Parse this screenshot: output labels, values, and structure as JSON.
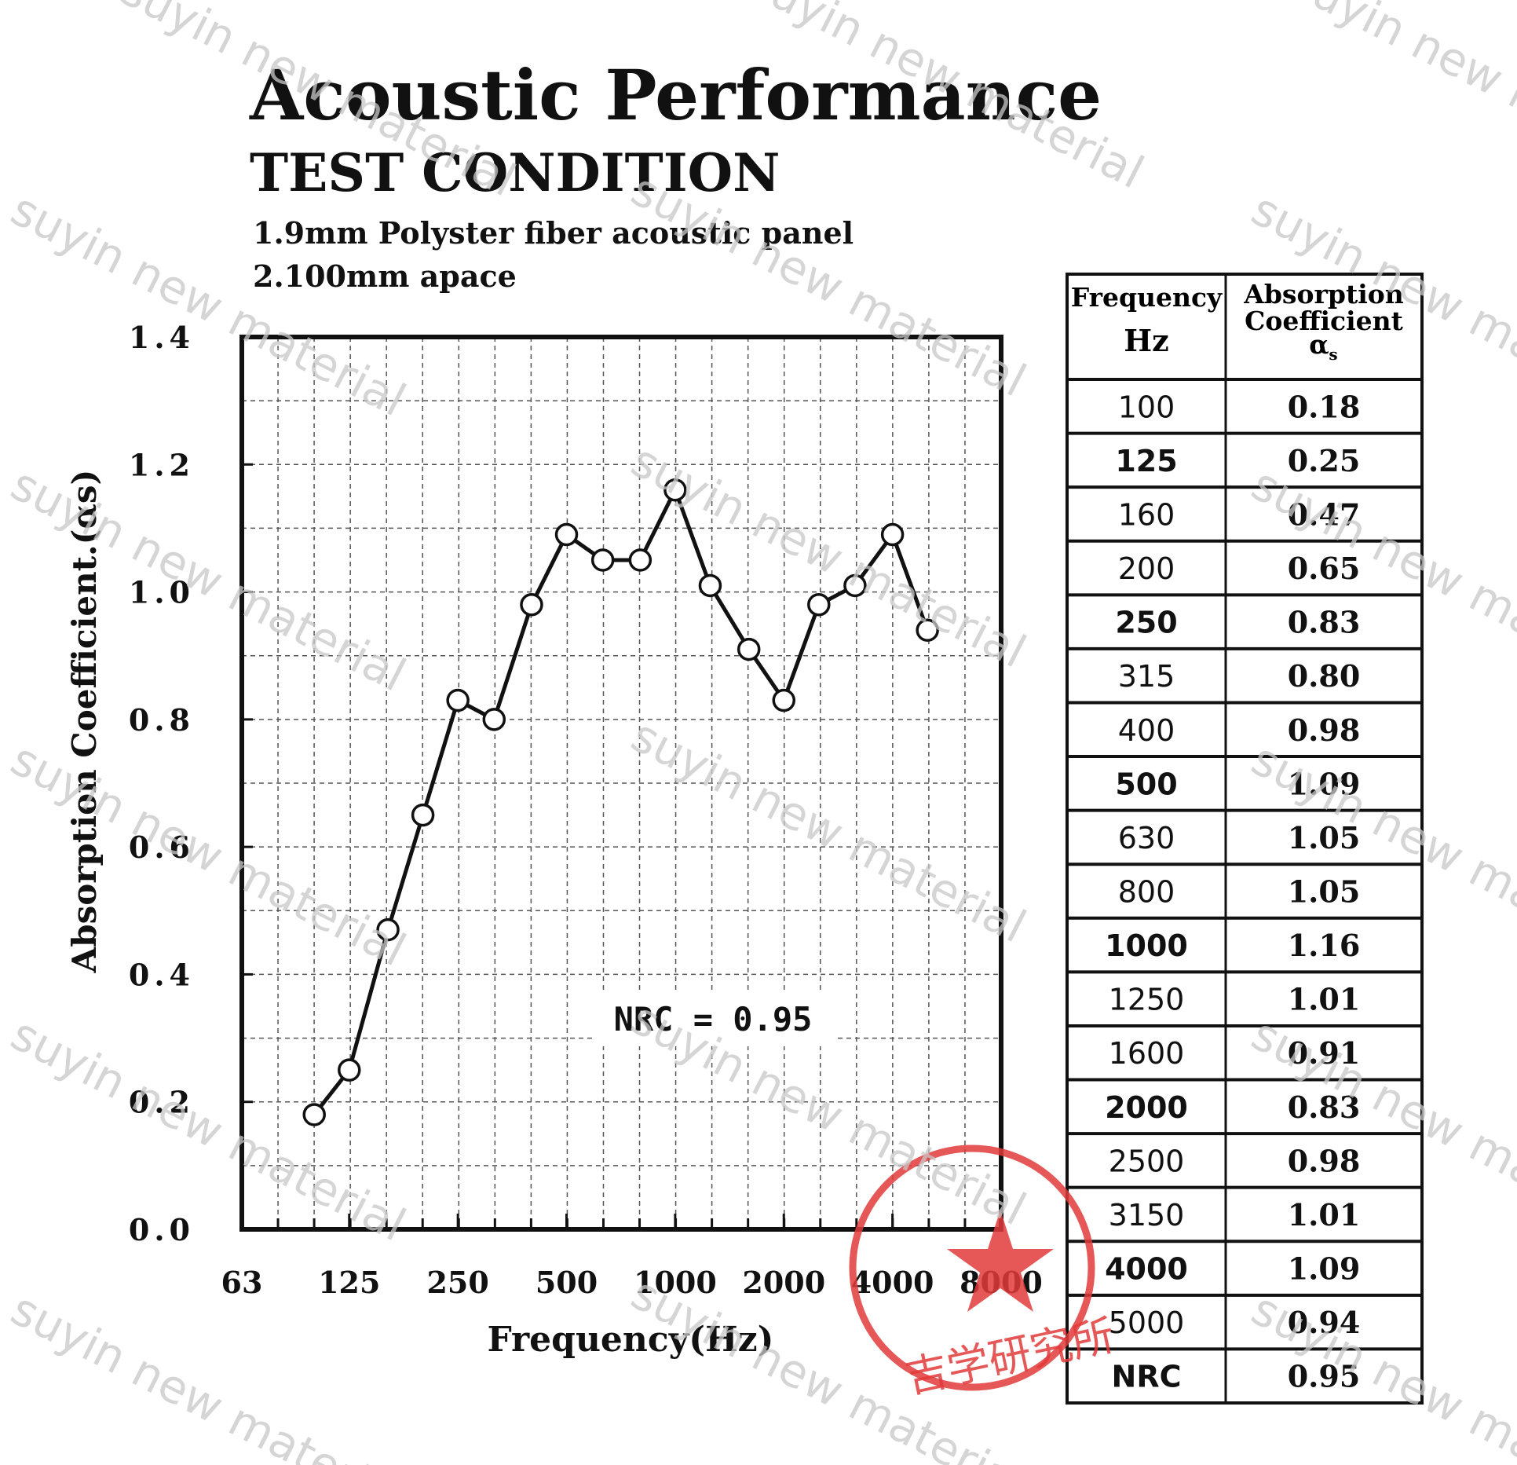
{
  "chart_data": {
    "type": "line",
    "title": "Acoustic Performance",
    "subtitle": "TEST CONDITION",
    "notes": [
      "1.9mm Polyster fiber acoustic panel",
      "2.100mm apace"
    ],
    "x_label": "Frequency(Hz)",
    "y_label": "Absorption Coefficient.(αs)",
    "annotation": "NRC = 0.95",
    "x": [
      100,
      125,
      160,
      200,
      250,
      315,
      400,
      500,
      630,
      800,
      1000,
      1250,
      1600,
      2000,
      2500,
      3150,
      4000,
      5000
    ],
    "series": [
      {
        "color": "#111111",
        "values": [
          0.18,
          0.25,
          0.47,
          0.65,
          0.83,
          0.8,
          0.98,
          1.09,
          1.05,
          1.05,
          1.16,
          1.01,
          0.91,
          0.83,
          0.98,
          1.01,
          1.09,
          0.94
        ]
      }
    ],
    "x_scale": "log",
    "xlim": [
      63,
      8000
    ],
    "xticks": [
      63,
      125,
      250,
      500,
      1000,
      2000,
      4000,
      8000
    ],
    "ylim": [
      0,
      1.4
    ],
    "yticks": [
      {
        "value": 0,
        "label": "0.0"
      },
      0.2,
      0.4,
      0.6,
      0.8,
      {
        "value": 1,
        "label": "1.0"
      },
      1.2,
      1.4
    ],
    "grid": true
  },
  "table": {
    "headers": [
      [
        "Frequency",
        "Hz"
      ],
      [
        "Absorption",
        "Coefficient",
        "α",
        "s"
      ]
    ],
    "rows": [
      [
        "100",
        "0.18"
      ],
      [
        "125",
        "0.25"
      ],
      [
        "160",
        "0.47"
      ],
      [
        "200",
        "0.65"
      ],
      [
        "250",
        "0.83"
      ],
      [
        "315",
        "0.80"
      ],
      [
        "400",
        "0.98"
      ],
      [
        "500",
        "1.09"
      ],
      [
        "630",
        "1.05"
      ],
      [
        "800",
        "1.05"
      ],
      [
        "1000",
        "1.16"
      ],
      [
        "1250",
        "1.01"
      ],
      [
        "1600",
        "0.91"
      ],
      [
        "2000",
        "0.83"
      ],
      [
        "2500",
        "0.98"
      ],
      [
        "3150",
        "1.01"
      ],
      [
        "4000",
        "1.09"
      ],
      [
        "5000",
        "0.94"
      ],
      [
        "NRC",
        "0.95"
      ]
    ]
  },
  "watermark": "suyin new material",
  "stamp": "吉学研究所"
}
